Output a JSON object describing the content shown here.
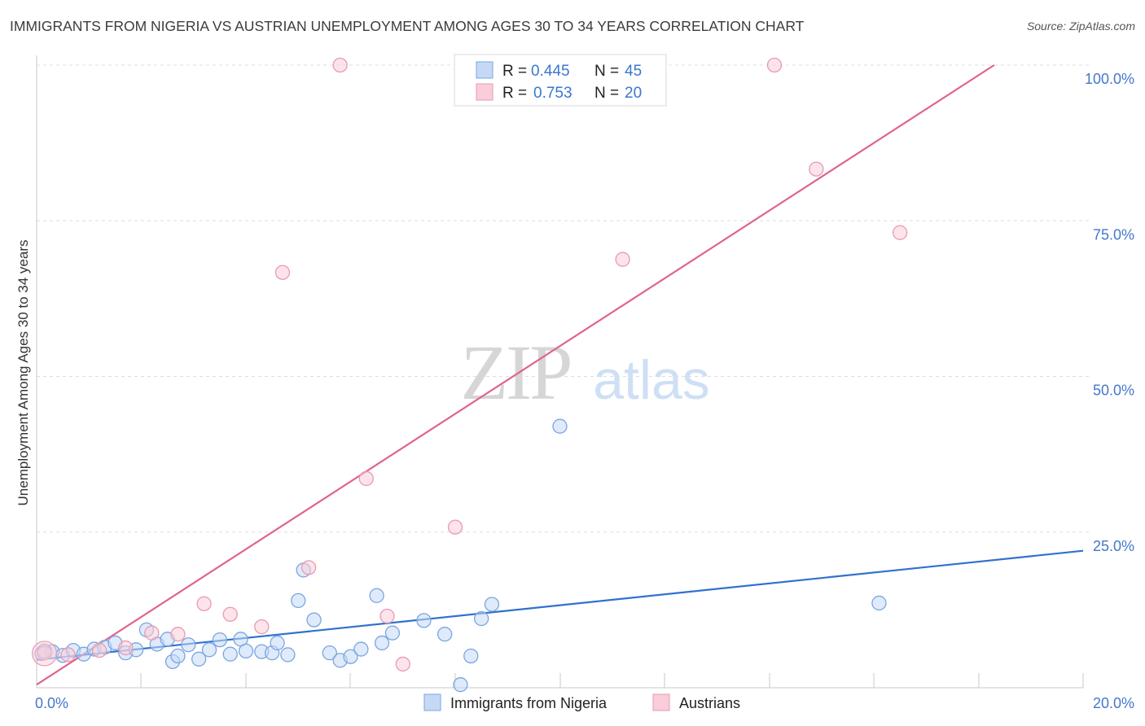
{
  "chart_data": {
    "type": "scatter",
    "title": "IMMIGRANTS FROM NIGERIA VS AUSTRIAN UNEMPLOYMENT AMONG AGES 30 TO 34 YEARS CORRELATION CHART",
    "source": "Source: ZipAtlas.com",
    "xlabel": "",
    "ylabel": "Unemployment Among Ages 30 to 34 years",
    "xlim": [
      0,
      20
    ],
    "ylim": [
      0,
      100
    ],
    "x_tick_labels": [
      "0.0%",
      "20.0%"
    ],
    "y_tick_labels": [
      "100.0%",
      "75.0%",
      "50.0%",
      "25.0%"
    ],
    "y_tick_values": [
      100,
      75,
      50,
      25
    ],
    "grid": true,
    "watermark": {
      "part1": "ZIP",
      "part2": "atlas"
    },
    "legend_stats": [
      {
        "r_label": "R =",
        "r_value": "0.445",
        "n_label": "N =",
        "n_value": "45"
      },
      {
        "r_label": "R =",
        "r_value": "0.753",
        "n_label": "N =",
        "n_value": "20"
      }
    ],
    "series": [
      {
        "name": "Immigrants from Nigeria",
        "color": "#7aa6e0",
        "fill": "#c5d9f5",
        "line_color": "#2f72cc",
        "trend": {
          "x": [
            0,
            20
          ],
          "y": [
            4.5,
            22
          ]
        },
        "points": [
          {
            "x": 0.1,
            "y": 5.5
          },
          {
            "x": 0.3,
            "y": 5.8
          },
          {
            "x": 0.5,
            "y": 5.2
          },
          {
            "x": 0.7,
            "y": 6.0
          },
          {
            "x": 0.9,
            "y": 5.4
          },
          {
            "x": 1.1,
            "y": 6.2
          },
          {
            "x": 1.3,
            "y": 6.5
          },
          {
            "x": 1.5,
            "y": 7.2
          },
          {
            "x": 1.7,
            "y": 5.6
          },
          {
            "x": 1.9,
            "y": 6.1
          },
          {
            "x": 2.1,
            "y": 9.3
          },
          {
            "x": 2.3,
            "y": 7.0
          },
          {
            "x": 2.5,
            "y": 7.8
          },
          {
            "x": 2.6,
            "y": 4.2
          },
          {
            "x": 2.7,
            "y": 5.1
          },
          {
            "x": 2.9,
            "y": 6.9
          },
          {
            "x": 3.1,
            "y": 4.6
          },
          {
            "x": 3.3,
            "y": 6.1
          },
          {
            "x": 3.5,
            "y": 7.7
          },
          {
            "x": 3.7,
            "y": 5.4
          },
          {
            "x": 3.9,
            "y": 7.8
          },
          {
            "x": 4.0,
            "y": 5.9
          },
          {
            "x": 4.3,
            "y": 5.8
          },
          {
            "x": 4.5,
            "y": 5.6
          },
          {
            "x": 4.6,
            "y": 7.2
          },
          {
            "x": 4.8,
            "y": 5.3
          },
          {
            "x": 5.0,
            "y": 14.0
          },
          {
            "x": 5.1,
            "y": 18.9
          },
          {
            "x": 5.3,
            "y": 10.9
          },
          {
            "x": 5.6,
            "y": 5.6
          },
          {
            "x": 5.8,
            "y": 4.4
          },
          {
            "x": 6.0,
            "y": 5.0
          },
          {
            "x": 6.2,
            "y": 6.2
          },
          {
            "x": 6.5,
            "y": 14.8
          },
          {
            "x": 6.6,
            "y": 7.2
          },
          {
            "x": 6.8,
            "y": 8.8
          },
          {
            "x": 7.4,
            "y": 10.8
          },
          {
            "x": 7.8,
            "y": 8.6
          },
          {
            "x": 8.1,
            "y": 0.5
          },
          {
            "x": 8.3,
            "y": 5.1
          },
          {
            "x": 8.5,
            "y": 11.1
          },
          {
            "x": 8.7,
            "y": 13.4
          },
          {
            "x": 10.0,
            "y": 42.0
          },
          {
            "x": 16.1,
            "y": 13.6
          },
          {
            "x": 0.15,
            "y": 5.9
          }
        ]
      },
      {
        "name": "Austrians",
        "color": "#e89ab2",
        "fill": "#f9cdd9",
        "line_color": "#e0648e",
        "trend": {
          "x": [
            0,
            18.3
          ],
          "y": [
            0.5,
            100
          ]
        },
        "points": [
          {
            "x": 0.15,
            "y": 5.6
          },
          {
            "x": 0.6,
            "y": 5.3
          },
          {
            "x": 1.2,
            "y": 6.0
          },
          {
            "x": 1.7,
            "y": 6.4
          },
          {
            "x": 2.2,
            "y": 8.8
          },
          {
            "x": 2.7,
            "y": 8.6
          },
          {
            "x": 3.2,
            "y": 13.5
          },
          {
            "x": 3.7,
            "y": 11.8
          },
          {
            "x": 4.3,
            "y": 9.8
          },
          {
            "x": 4.7,
            "y": 66.7
          },
          {
            "x": 5.2,
            "y": 19.3
          },
          {
            "x": 5.8,
            "y": 100.0
          },
          {
            "x": 6.3,
            "y": 33.6
          },
          {
            "x": 6.7,
            "y": 11.5
          },
          {
            "x": 7.0,
            "y": 3.8
          },
          {
            "x": 8.0,
            "y": 25.8
          },
          {
            "x": 11.2,
            "y": 68.8
          },
          {
            "x": 14.1,
            "y": 100.0
          },
          {
            "x": 14.9,
            "y": 83.3
          },
          {
            "x": 16.5,
            "y": 73.1
          }
        ]
      }
    ]
  }
}
